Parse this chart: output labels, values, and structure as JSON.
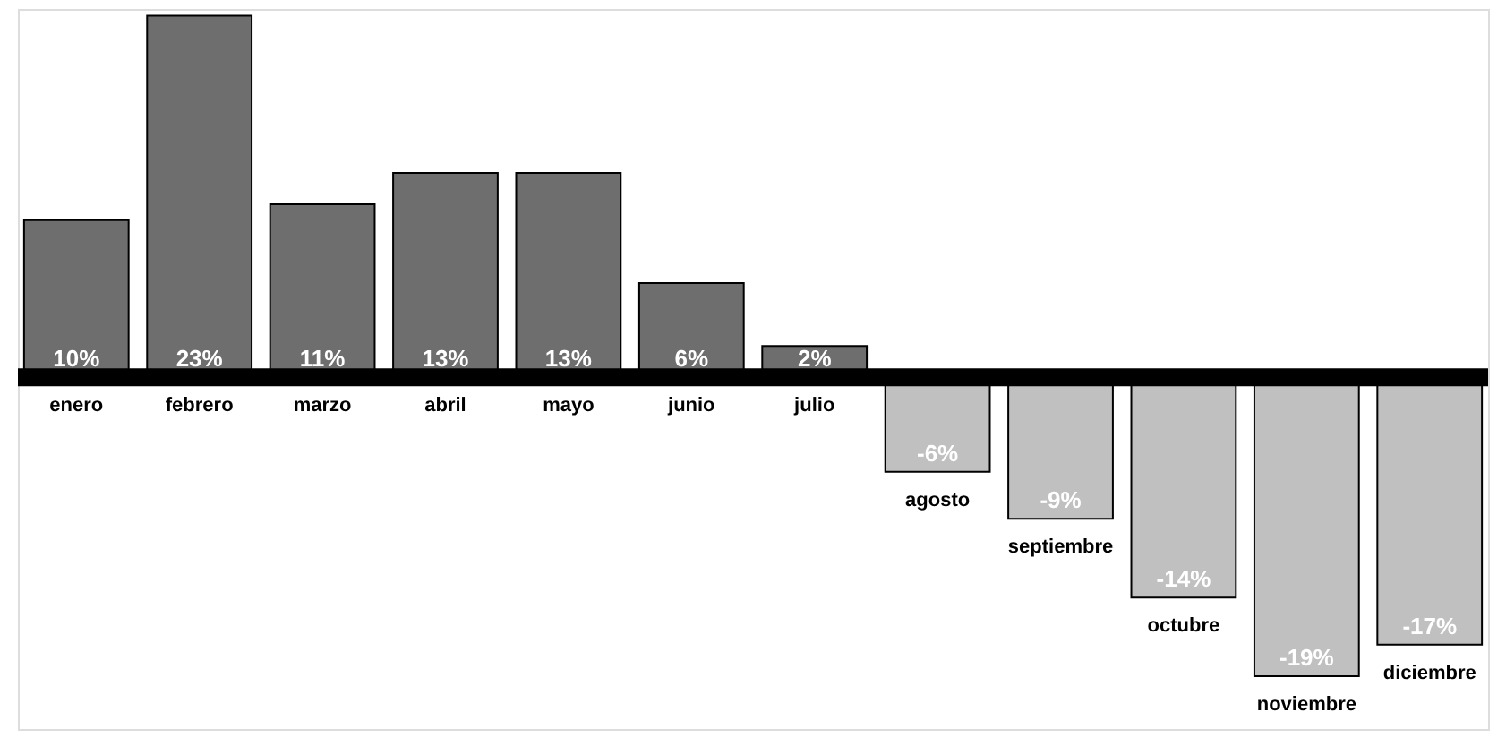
{
  "chart_data": {
    "type": "bar",
    "categories": [
      "enero",
      "febrero",
      "marzo",
      "abril",
      "mayo",
      "junio",
      "julio",
      "agosto",
      "septiembre",
      "octubre",
      "noviembre",
      "diciembre"
    ],
    "values": [
      10,
      23,
      11,
      13,
      13,
      6,
      2,
      -6,
      -9,
      -14,
      -19,
      -17
    ],
    "colors": [
      "#6e6e6e",
      "#6e6e6e",
      "#6e6e6e",
      "#6e6e6e",
      "#6e6e6e",
      "#6e6e6e",
      "#6e6e6e",
      "#c0c0c0",
      "#c0c0c0",
      "#c0c0c0",
      "#c0c0c0",
      "#c0c0c0"
    ],
    "value_labels": [
      "10%",
      "23%",
      "11%",
      "13%",
      "13%",
      "6%",
      "2%",
      "-6%",
      "-9%",
      "-14%",
      "-19%",
      "-17%"
    ]
  }
}
